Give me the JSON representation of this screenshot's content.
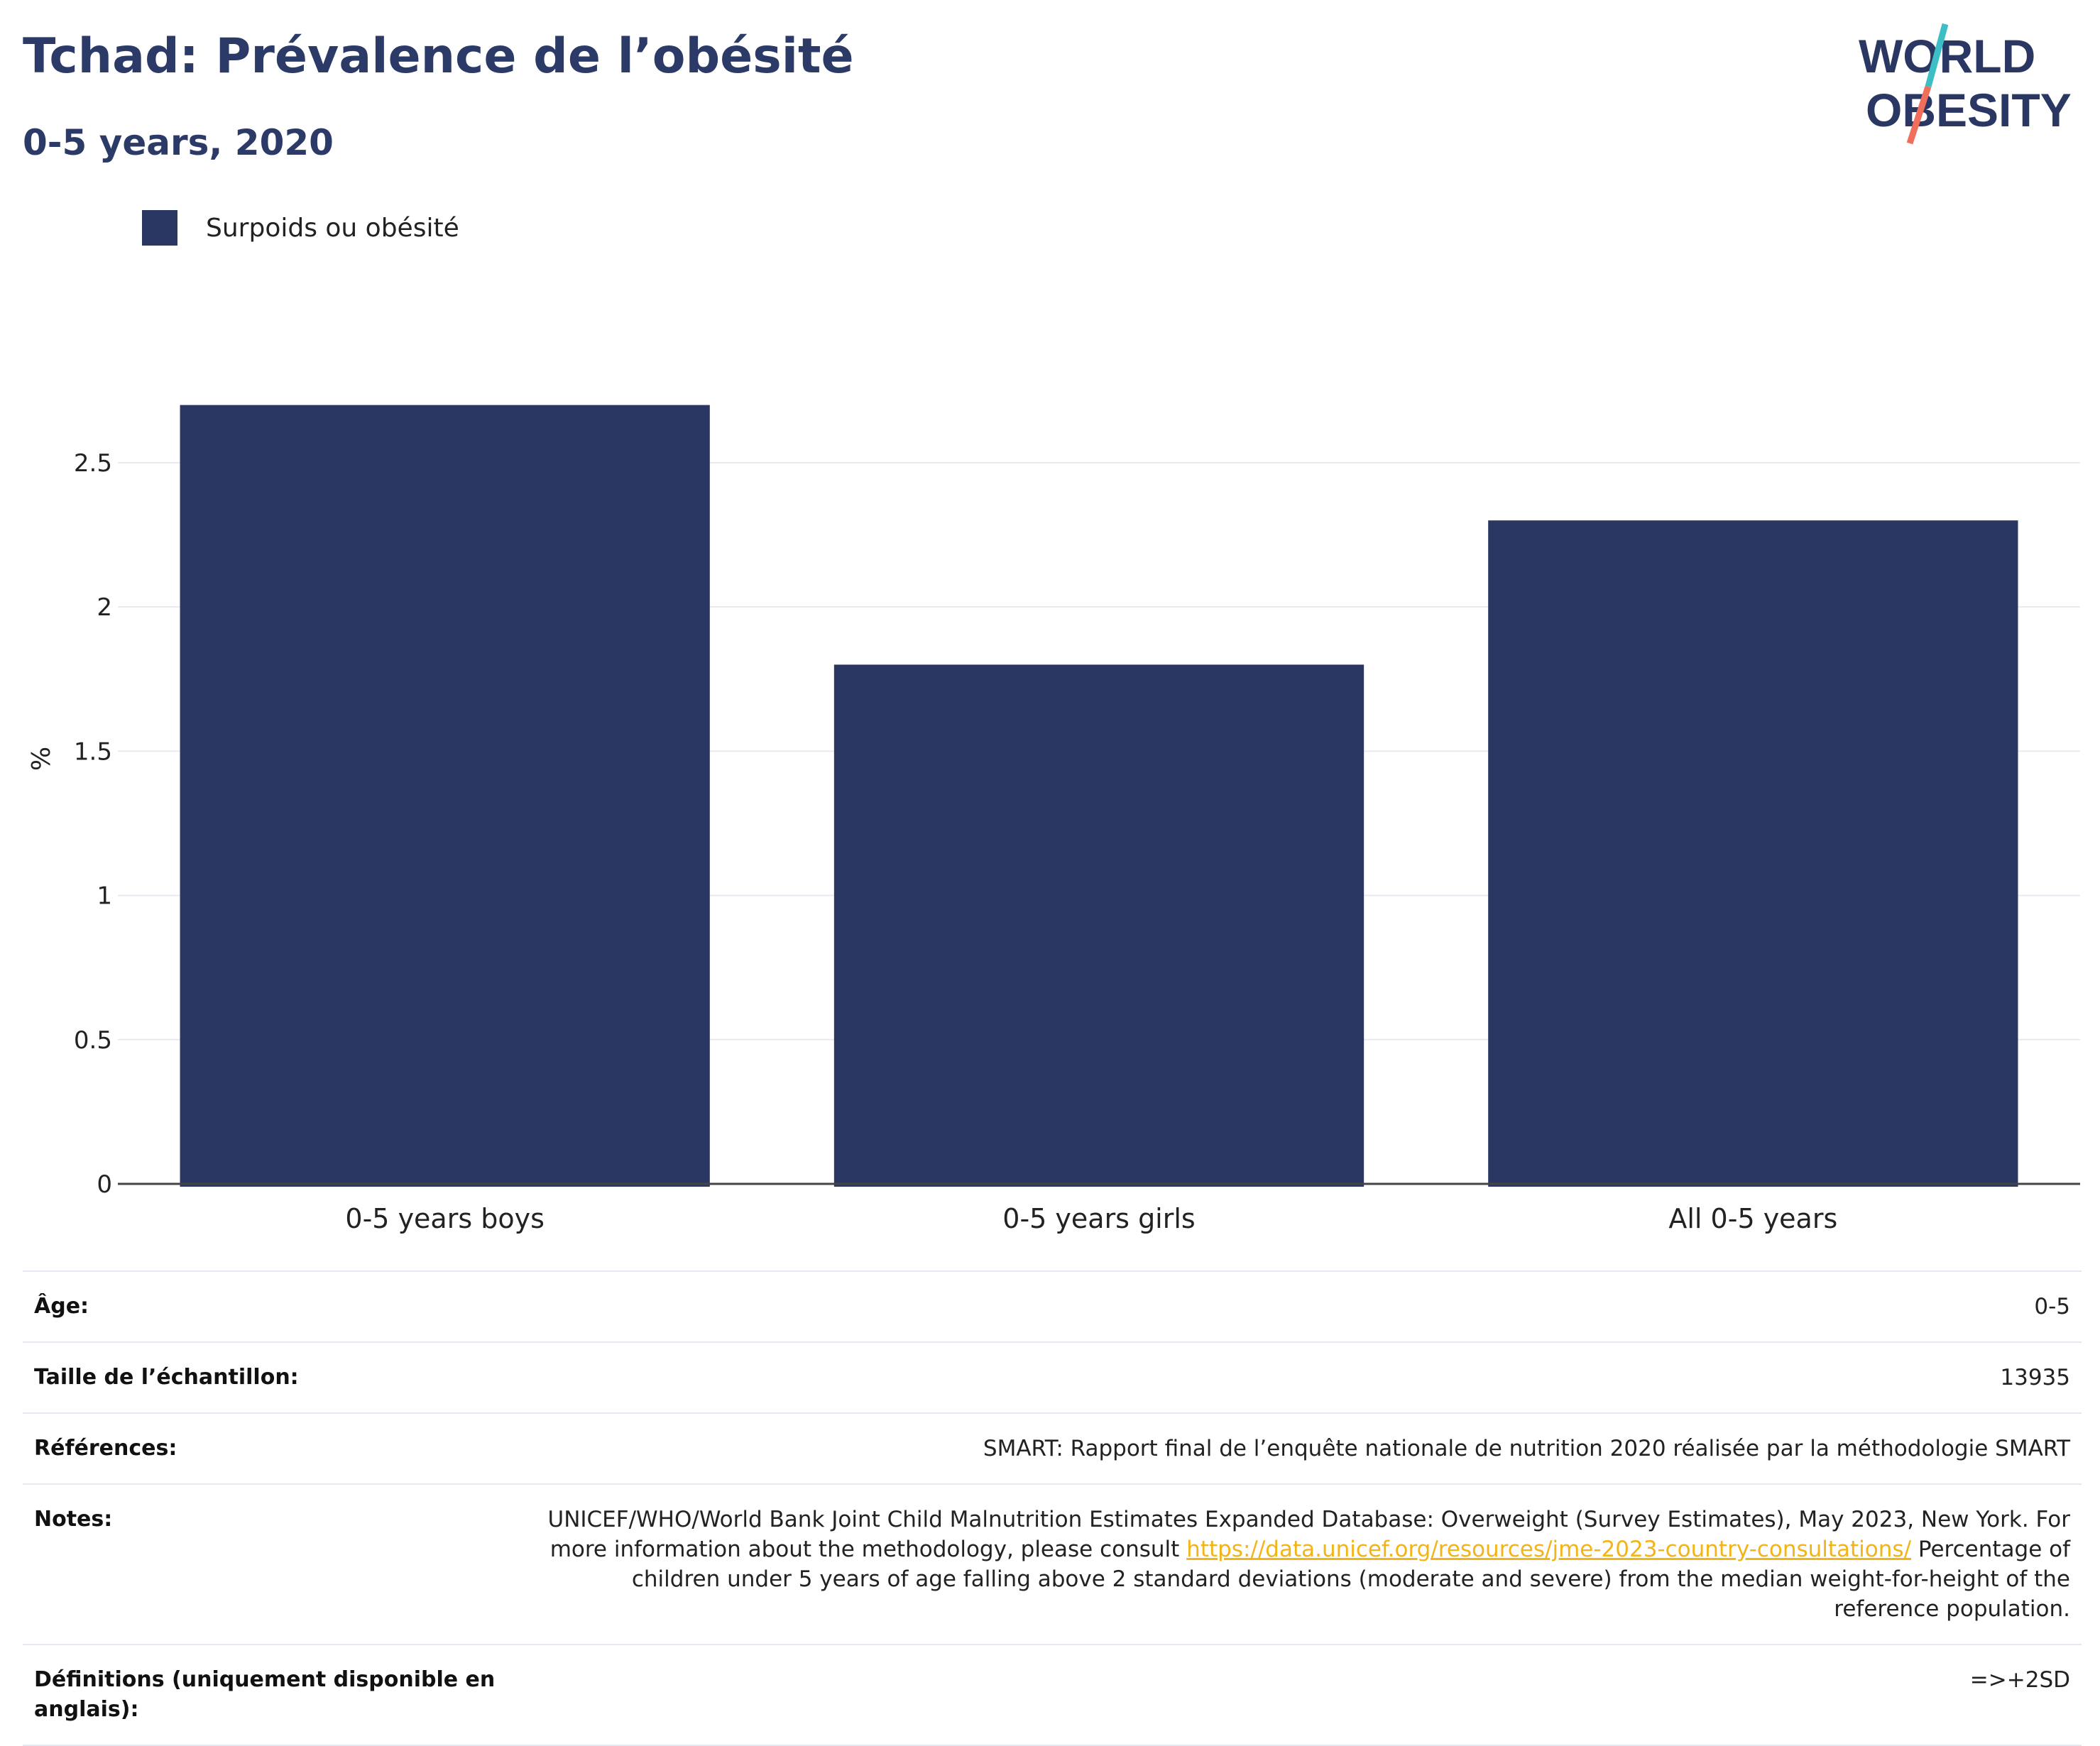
{
  "header": {
    "title": "Tchad: Prévalence de l’obésité",
    "subtitle": "0-5 years, 2020"
  },
  "logo": {
    "line1": "WORLD",
    "line2": "OBESITY",
    "colors": {
      "text": "#2b3763",
      "slash_top": "#3bbfc4",
      "slash_bottom": "#ef6f5c"
    }
  },
  "legend": {
    "items": [
      {
        "label": "Surpoids ou obésité",
        "color": "#2b3763"
      }
    ]
  },
  "chart_data": {
    "type": "bar",
    "categories": [
      "0-5 years boys",
      "0-5 years girls",
      "All 0-5 years"
    ],
    "series": [
      {
        "name": "Surpoids ou obésité",
        "values": [
          2.7,
          1.8,
          2.3
        ]
      }
    ],
    "ylabel": "%",
    "xlabel": "",
    "ylim": [
      0,
      2.8
    ],
    "yticks": [
      0,
      0.5,
      1,
      1.5,
      2,
      2.5
    ],
    "ytick_labels": [
      "0",
      "0.5",
      "1",
      "1.5",
      "2",
      "2.5"
    ],
    "grid": true,
    "legend_position": "top-left",
    "bar_color": "#2b3763"
  },
  "info": {
    "rows": [
      {
        "key": "Âge:",
        "value": "0-5"
      },
      {
        "key": "Taille de l’échantillon:",
        "value": "13935"
      },
      {
        "key": "Références:",
        "value": "SMART: Rapport final de l’enquête nationale de nutrition 2020 réalisée par la méthodologie SMART"
      },
      {
        "key": "Notes:",
        "value_before": "UNICEF/WHO/World Bank Joint Child Malnutrition Estimates Expanded Database: Overweight (Survey Estimates), May 2023, New York. For more information about the methodology, please consult ",
        "link": "https://data.unicef.org/resources/jme-2023-country-consultations/",
        "value_after": " Percentage of children under 5 years of age falling above 2 standard deviations (moderate and severe) from the median weight-for-height of the reference population."
      },
      {
        "key": "Définitions (uniquement disponible en anglais):",
        "value": "=>+2SD"
      }
    ]
  }
}
